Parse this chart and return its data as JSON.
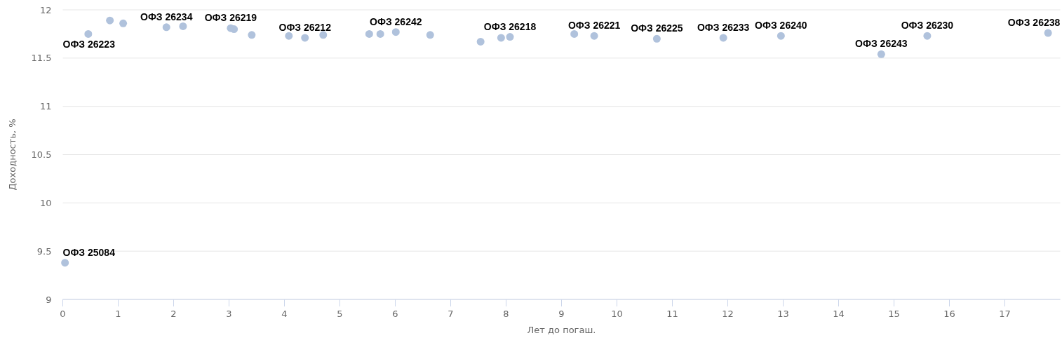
{
  "chart_data": {
    "type": "scatter",
    "xlabel": "Лет до погаш.",
    "ylabel": "Доходность, %",
    "x": [
      0.04,
      0.46,
      0.85,
      1.09,
      1.87,
      2.17,
      3.03,
      3.09,
      3.41,
      4.08,
      4.37,
      4.7,
      5.53,
      5.73,
      6.01,
      6.63,
      7.54,
      7.91,
      8.07,
      9.23,
      9.59,
      10.72,
      11.92,
      12.96,
      14.77,
      15.6,
      17.78
    ],
    "series": [
      {
        "color": "#b0c2dc",
        "values": [
          9.38,
          11.75,
          11.89,
          11.86,
          11.82,
          11.83,
          11.81,
          11.8,
          11.74,
          11.73,
          11.71,
          11.74,
          11.75,
          11.75,
          11.77,
          11.74,
          11.67,
          11.71,
          11.72,
          11.75,
          11.73,
          11.7,
          11.71,
          11.73,
          11.54,
          11.73,
          11.76
        ]
      }
    ],
    "xlim": [
      0,
      18
    ],
    "xticks": [
      0,
      1,
      2,
      3,
      4,
      5,
      6,
      7,
      8,
      9,
      10,
      11,
      12,
      13,
      14,
      15,
      16,
      17
    ],
    "ylim": [
      9,
      12
    ],
    "yticks": [
      9,
      9.5,
      10,
      10.5,
      11,
      11.5,
      12
    ],
    "grid": "y",
    "marker": "circle",
    "annotations": [
      {
        "text": "ОФЗ 25084",
        "x": 0.04,
        "y": 9.38
      },
      {
        "text": "ОФЗ 26223",
        "x": 0.46,
        "y": 11.75
      },
      {
        "text": "ОФЗ 26234",
        "x": 1.87,
        "y": 11.82
      },
      {
        "text": "ОФЗ 26219",
        "x": 3.03,
        "y": 11.81
      },
      {
        "text": "ОФЗ 26212",
        "x": 4.37,
        "y": 11.71
      },
      {
        "text": "ОФЗ 26242",
        "x": 6.01,
        "y": 11.77
      },
      {
        "text": "ОФЗ 26218",
        "x": 8.07,
        "y": 11.72
      },
      {
        "text": "ОФЗ 26221",
        "x": 9.59,
        "y": 11.73
      },
      {
        "text": "ОФЗ 26225",
        "x": 10.72,
        "y": 11.7
      },
      {
        "text": "ОФЗ 26233",
        "x": 11.92,
        "y": 11.71
      },
      {
        "text": "ОФЗ 26240",
        "x": 12.96,
        "y": 11.73
      },
      {
        "text": "ОФЗ 26243",
        "x": 14.77,
        "y": 11.54
      },
      {
        "text": "ОФЗ 26230",
        "x": 15.6,
        "y": 11.73
      },
      {
        "text": "ОФЗ 26238",
        "x": 17.78,
        "y": 11.76
      }
    ]
  }
}
